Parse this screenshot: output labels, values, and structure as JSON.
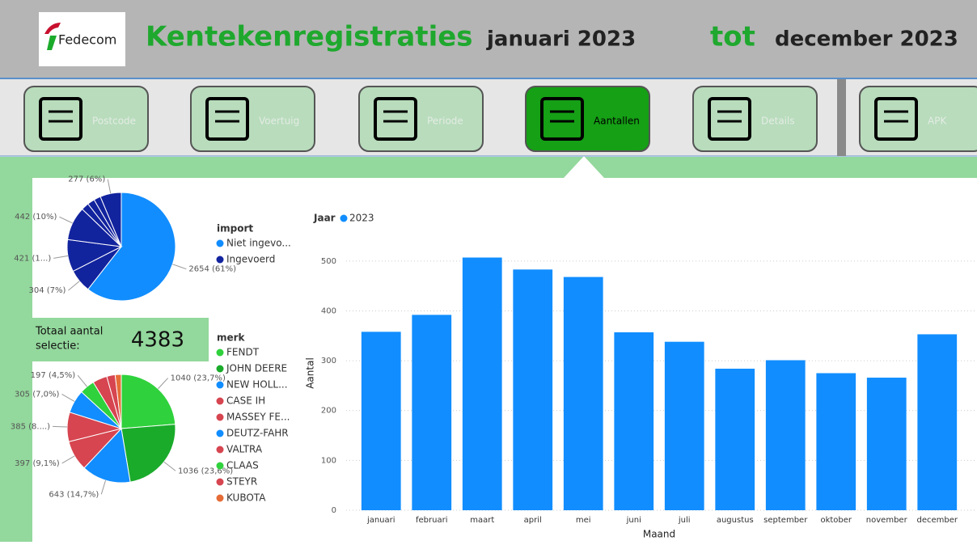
{
  "header": {
    "logo": "Fedecom",
    "title": "Kentekenregistraties",
    "from": "januari 2023",
    "tot": "tot",
    "to": "december 2023"
  },
  "nav": {
    "items": [
      "Postcode",
      "Voertuig",
      "Periode",
      "Aantallen",
      "Details",
      "APK"
    ],
    "active": 3
  },
  "total": {
    "label": [
      "Totaal aantal",
      "selectie:"
    ],
    "value": 4383
  },
  "pies": [
    {
      "type": "pie",
      "legend_title": "import",
      "legend": [
        "Niet ingevo...",
        "Ingevoerd"
      ],
      "legend_colors": [
        "#118dff",
        "#12239e"
      ],
      "values": [
        2654,
        304,
        421,
        442,
        100,
        95,
        90,
        277
      ],
      "value_labels": [
        "2654 (61%)",
        "304 (7%)",
        "421 (1...)",
        "442 (10%)",
        null,
        null,
        null,
        "277 (6%)"
      ],
      "colors": [
        "#118dff",
        "#12239e",
        "#12239e",
        "#12239e",
        "#12239e",
        "#12239e",
        "#12239e",
        "#12239e"
      ]
    },
    {
      "type": "pie",
      "legend_title": "merk",
      "legend": [
        "FENDT",
        "JOHN DEERE",
        "NEW HOLL...",
        "CASE IH",
        "MASSEY FE...",
        "DEUTZ-FAHR",
        "VALTRA",
        "CLAAS",
        "STEYR",
        "KUBOTA"
      ],
      "legend_colors": [
        "#2fd13c",
        "#1aab2b",
        "#118dff",
        "#d64550",
        "#d64550",
        "#118dff",
        "#d64550",
        "#2fd13c",
        "#d64550",
        "#e66c37"
      ],
      "values": [
        1040,
        1036,
        643,
        397,
        385,
        305,
        197,
        190,
        110,
        80
      ],
      "value_labels": [
        "1040 (23,7%)",
        "1036 (23,6%)",
        "643 (14,7%)",
        "397 (9,1%)",
        "385 (8....)",
        "305 (7,0%)",
        "197 (4,5%)",
        null,
        null,
        null
      ],
      "colors": [
        "#2fd13c",
        "#1aab2b",
        "#118dff",
        "#d64550",
        "#d64550",
        "#118dff",
        "#2fd13c",
        "#d64550",
        "#d64550",
        "#e66c37"
      ]
    }
  ],
  "chart_data": {
    "type": "bar",
    "legend_title": "Jaar",
    "xlabel": "Maand",
    "ylabel": "Aantal",
    "categories": [
      "januari",
      "februari",
      "maart",
      "april",
      "mei",
      "juni",
      "juli",
      "augustus",
      "september",
      "oktober",
      "november",
      "december"
    ],
    "series": [
      {
        "name": "2023",
        "color": "#118dff",
        "values": [
          358,
          392,
          507,
          483,
          468,
          357,
          338,
          284,
          301,
          275,
          266,
          353
        ]
      }
    ],
    "ylim": [
      0,
      550
    ],
    "yticks": [
      0,
      100,
      200,
      300,
      400,
      500
    ],
    "grid": true
  }
}
